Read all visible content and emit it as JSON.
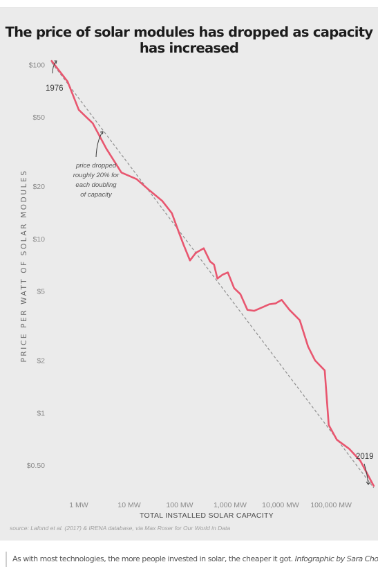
{
  "chart_data": {
    "type": "line",
    "title": "The price of solar modules has dropped as capacity has increased",
    "xlabel": "TOTAL INSTALLED SOLAR CAPACITY",
    "ylabel": "PRICE PER WATT OF SOLAR MODULES",
    "x_scale": "log",
    "y_scale": "log",
    "xlim": [
      0.25,
      800000
    ],
    "ylim": [
      0.35,
      110
    ],
    "x_ticks": [
      {
        "value": 1,
        "label": "1 MW"
      },
      {
        "value": 10,
        "label": "10 MW"
      },
      {
        "value": 100,
        "label": "100 MW"
      },
      {
        "value": 1000,
        "label": "1,000 MW"
      },
      {
        "value": 10000,
        "label": "10,000 MW"
      },
      {
        "value": 100000,
        "label": "100,000 MW"
      }
    ],
    "y_ticks": [
      {
        "value": 100,
        "label": "$100"
      },
      {
        "value": 50,
        "label": "$50"
      },
      {
        "value": 20,
        "label": "$20"
      },
      {
        "value": 10,
        "label": "$10"
      },
      {
        "value": 5,
        "label": "$5"
      },
      {
        "value": 2,
        "label": "$2"
      },
      {
        "value": 1,
        "label": "$1"
      },
      {
        "value": 0.5,
        "label": "$0.50"
      }
    ],
    "grid": false,
    "series": [
      {
        "color": "#e8566f",
        "x": [
          0.29,
          0.6,
          1.0,
          1.9,
          3.5,
          7,
          14,
          25,
          45,
          70,
          95,
          120,
          160,
          210,
          300,
          400,
          480,
          560,
          700,
          900,
          1200,
          1600,
          2200,
          3000,
          4500,
          6000,
          8000,
          10500,
          15000,
          24000,
          35000,
          48000,
          75000,
          90000,
          130000,
          230000,
          380000,
          700000
        ],
        "y": [
          105,
          80,
          55,
          46,
          33,
          24,
          22,
          19,
          16.5,
          14,
          11,
          9.2,
          7.5,
          8.3,
          8.8,
          7.4,
          7.1,
          5.9,
          6.2,
          6.4,
          5.2,
          4.8,
          3.9,
          3.85,
          4.05,
          4.2,
          4.25,
          4.45,
          3.9,
          3.4,
          2.4,
          2.0,
          1.75,
          0.85,
          0.7,
          0.62,
          0.53,
          0.38
        ]
      },
      {
        "x": [
          0.29,
          700000
        ],
        "y": [
          103,
          0.37
        ]
      }
    ],
    "annotations": {
      "start_label": "1976",
      "end_label": "2019",
      "trend_note": [
        "price dropped",
        "roughly 20% for",
        "each doubling",
        "of capacity"
      ]
    }
  },
  "source": "source: Lafond et al. (2017) & IRENA database, via Max Roser for Our World in Data",
  "caption": {
    "text": "As with most technologies, the more people invested in solar, the cheaper it got. ",
    "credit": "Infographic by Sara Chodosh"
  },
  "colors": {
    "line": "#e8566f",
    "trend": "#8f8f8f",
    "background": "#ebebeb"
  }
}
